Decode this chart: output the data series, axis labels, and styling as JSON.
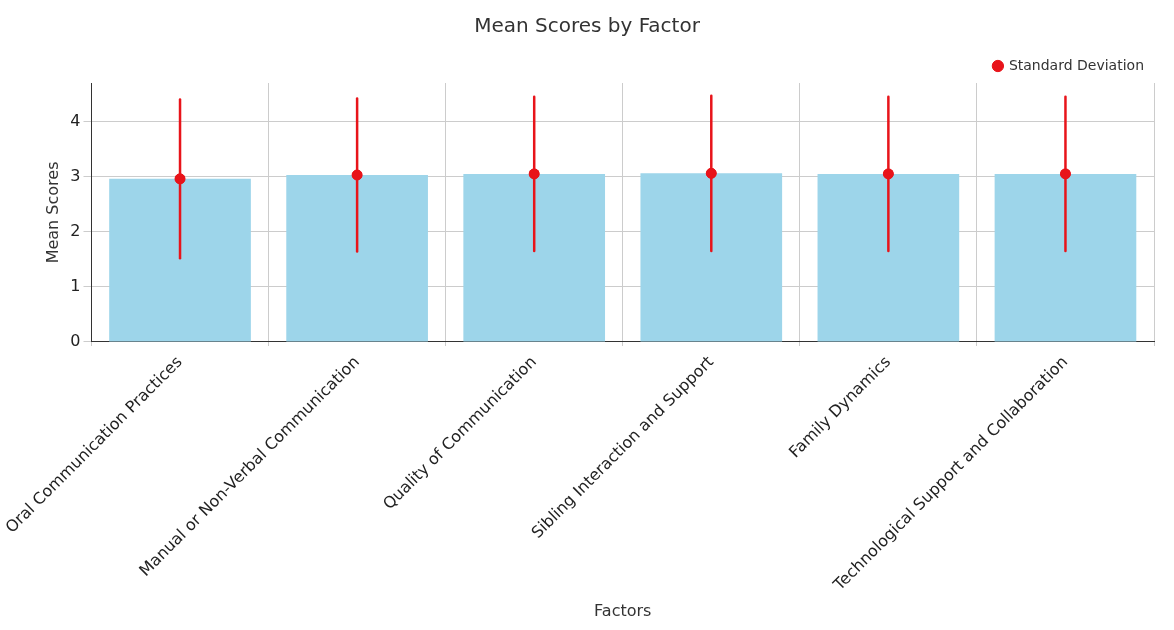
{
  "chart_data": {
    "type": "bar",
    "title": "Mean Scores by Factor",
    "xlabel": "Factors",
    "ylabel": "Mean Scores",
    "categories": [
      "Oral Communication Practices",
      "Manual or Non-Verbal Communication",
      "Quality of Communication",
      "Sibling Interaction and Support",
      "Family Dynamics",
      "Technological Support and Collaboration"
    ],
    "series": [
      {
        "color": "#9dd5ea",
        "values": [
          2.96,
          3.03,
          3.05,
          3.06,
          3.05,
          3.05
        ]
      },
      {
        "type": "scatter",
        "name": "Standard Deviation",
        "color": "#e8141a",
        "x": [
          "Oral Communication Practices",
          "Manual or Non-Verbal Communication",
          "Quality of Communication",
          "Sibling Interaction and Support",
          "Family Dynamics",
          "Technological Support and Collaboration"
        ],
        "values": [
          2.96,
          3.03,
          3.05,
          3.06,
          3.05,
          3.05
        ],
        "errors": [
          1.44,
          1.39,
          1.4,
          1.41,
          1.4,
          1.4
        ]
      }
    ],
    "ylim": [
      0,
      4.7
    ],
    "yticks": [
      0,
      1,
      2,
      3,
      4
    ],
    "grid": true,
    "legend": "top right",
    "marker": "circle"
  }
}
